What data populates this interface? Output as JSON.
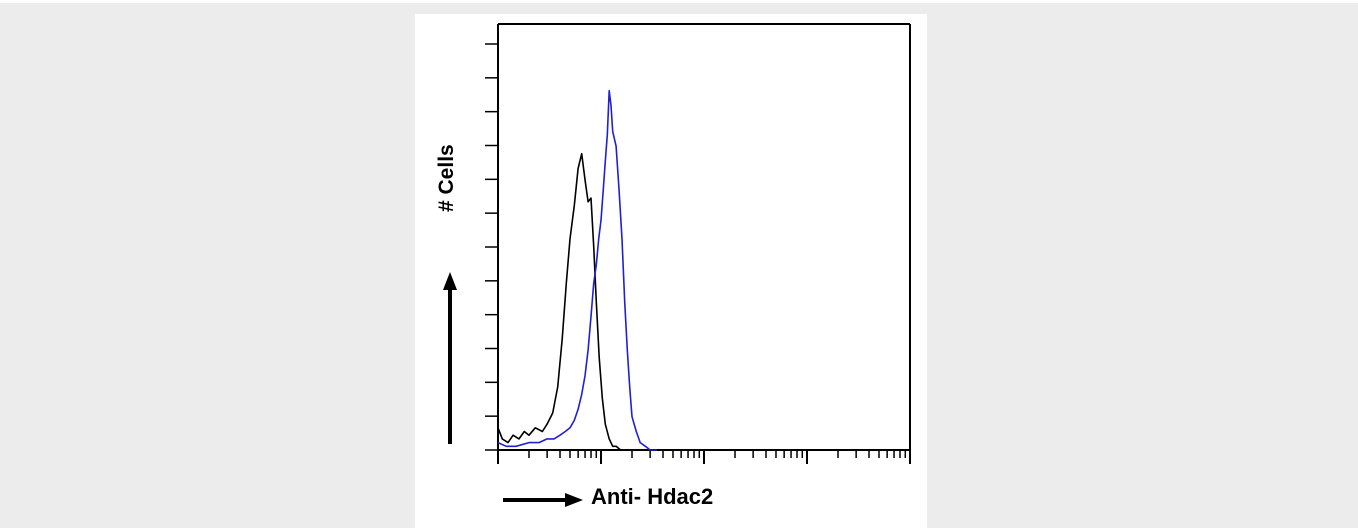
{
  "chart_data": {
    "type": "line",
    "title": "",
    "xlabel": "Anti- Hdac2",
    "ylabel": "# Cells",
    "xscale": "log",
    "grid": false,
    "legend": "none",
    "series": [
      {
        "color": "#000000",
        "x": [
          1.0,
          1.1,
          1.25,
          1.4,
          1.6,
          1.8,
          2.0,
          2.3,
          2.7,
          3.0,
          3.4,
          3.8,
          4.2,
          4.6,
          5.0,
          5.5,
          6.0,
          6.5,
          7.0,
          7.5,
          8.0,
          8.5,
          9.0,
          9.6,
          10.3,
          11.0,
          12.0,
          13.0,
          14.0,
          15.5,
          17.0,
          19.0
        ],
        "y": [
          0.06,
          0.03,
          0.02,
          0.04,
          0.03,
          0.05,
          0.04,
          0.06,
          0.05,
          0.07,
          0.1,
          0.17,
          0.3,
          0.45,
          0.57,
          0.66,
          0.76,
          0.8,
          0.73,
          0.67,
          0.68,
          0.55,
          0.4,
          0.25,
          0.14,
          0.07,
          0.03,
          0.01,
          0.01,
          0.0,
          0.0,
          0.0
        ]
      },
      {
        "color": "#2020d0",
        "x": [
          1.0,
          1.2,
          1.5,
          2.0,
          2.5,
          3.0,
          3.5,
          4.0,
          4.5,
          5.0,
          5.5,
          6.0,
          6.5,
          7.0,
          7.5,
          8.0,
          8.5,
          9.0,
          9.5,
          10.0,
          10.5,
          11.0,
          11.5,
          12.0,
          12.5,
          13.0,
          14.0,
          15.0,
          16.0,
          17.0,
          18.0,
          19.0,
          20.0,
          22.0,
          24.0,
          27.0,
          30.0,
          35.0
        ],
        "y": [
          0.02,
          0.01,
          0.01,
          0.02,
          0.02,
          0.03,
          0.03,
          0.04,
          0.05,
          0.06,
          0.08,
          0.11,
          0.15,
          0.2,
          0.27,
          0.36,
          0.45,
          0.5,
          0.57,
          0.62,
          0.7,
          0.78,
          0.85,
          0.97,
          0.93,
          0.86,
          0.82,
          0.7,
          0.57,
          0.4,
          0.27,
          0.17,
          0.09,
          0.05,
          0.02,
          0.01,
          0.0,
          0.0
        ]
      }
    ],
    "xlim": [
      1,
      10000
    ],
    "ylim": [
      0,
      1.15
    ]
  }
}
